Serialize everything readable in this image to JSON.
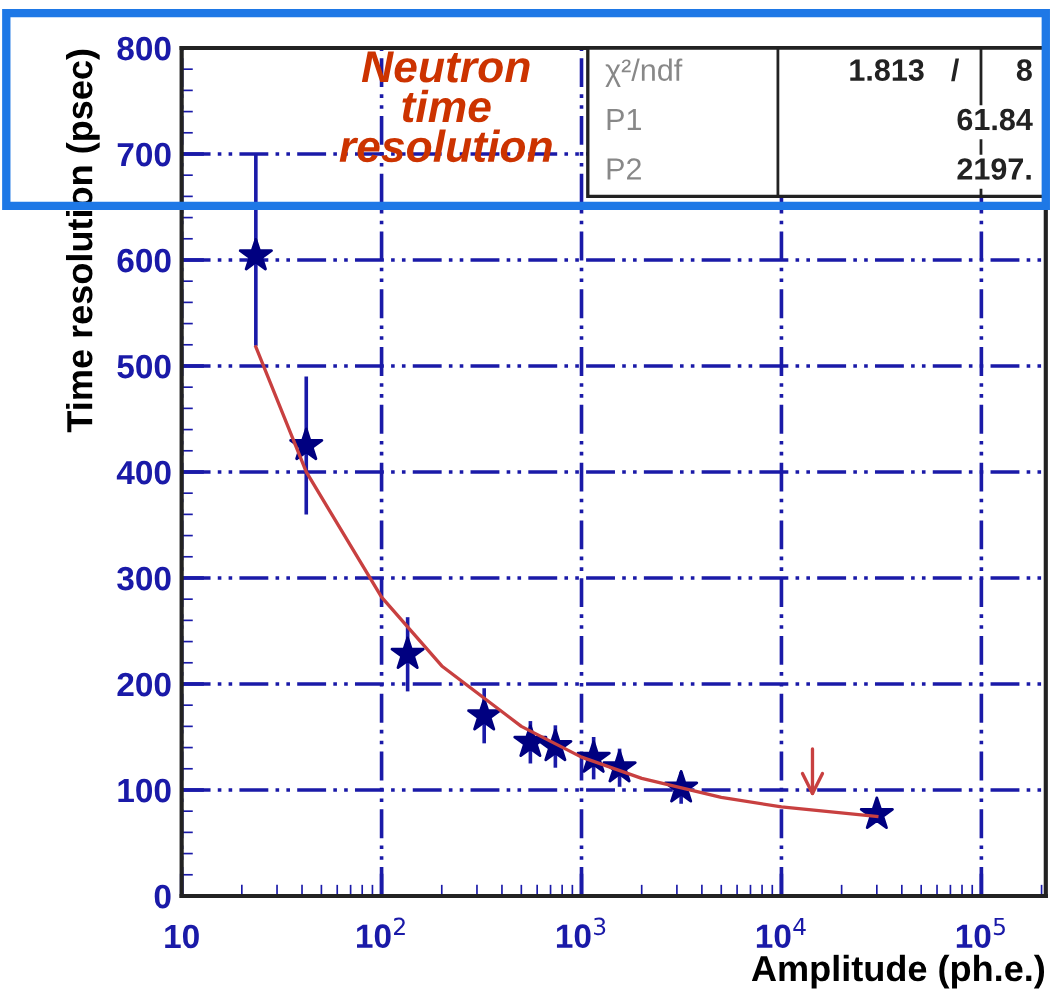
{
  "chart_data": {
    "type": "scatter",
    "title": "Neutron time resolution",
    "xlabel": "Amplitude (ph.e.)",
    "ylabel": "Time resolution (psec)",
    "log": "x",
    "grid": true,
    "marker": "star",
    "xlim": [
      10,
      210000
    ],
    "xticks": [
      {
        "value": 10,
        "label": "10"
      },
      {
        "value": 100,
        "label": "10$^{2}$"
      },
      {
        "value": 1000,
        "label": "10$^{3}$"
      },
      {
        "value": 10000,
        "label": "10$^{4}$"
      },
      {
        "value": 100000,
        "label": "10$^{5}$"
      }
    ],
    "ylim": [
      0,
      800
    ],
    "yticks": [
      0,
      100,
      200,
      300,
      400,
      500,
      600,
      700,
      800
    ],
    "annotations": [
      "χ²/ndf",
      "1.813",
      "/",
      "8",
      "P1",
      "61.84",
      "P2",
      "2197."
    ],
    "series": [
      {
        "color": "#000080",
        "x": [
          23.5,
          42,
          135,
          326,
          555,
          740,
          1150,
          1550,
          3150,
          30000
        ],
        "values": [
          604,
          425,
          228,
          170,
          145,
          141,
          130,
          121,
          102,
          77
        ],
        "errors": [
          [
            519,
            700
          ],
          65,
          35,
          26,
          20,
          20,
          20,
          18,
          15,
          null
        ]
      },
      {
        "type": "line",
        "color": "#c84040",
        "marker": "none",
        "x": [
          23.5,
          42,
          100,
          200,
          500,
          1000,
          2000,
          5000,
          10000,
          30000
        ],
        "values": [
          518,
          400,
          282,
          217,
          160,
          131,
          111,
          93,
          84,
          75
        ]
      }
    ]
  }
}
